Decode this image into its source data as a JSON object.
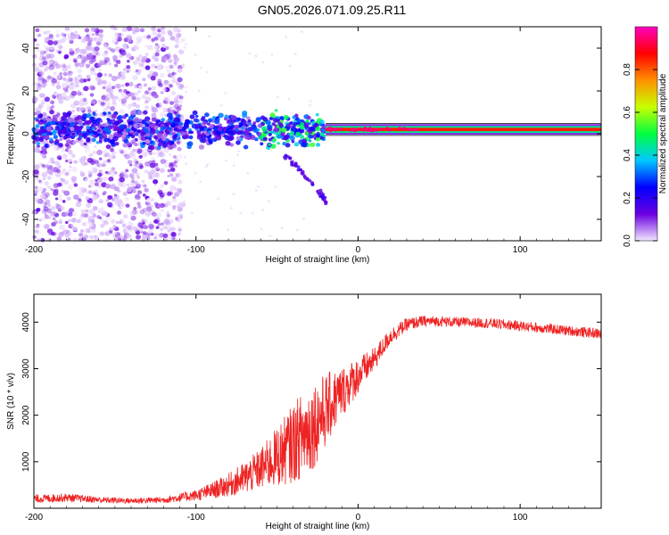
{
  "title": "GN05.2026.071.09.25.R11",
  "chart_data": [
    {
      "type": "heatmap",
      "name": "spectrogram",
      "xlabel": "Height of straight line (km)",
      "ylabel": "Frequency (Hz)",
      "xlim": [
        -200,
        150
      ],
      "ylim": [
        -50,
        50
      ],
      "xticks": [
        -200,
        -100,
        0,
        100
      ],
      "xtick_labels": [
        "-200",
        "-100",
        "0",
        "100"
      ],
      "yticks": [
        -40,
        -20,
        0,
        20,
        40
      ],
      "ytick_labels": [
        "-40",
        "-20",
        "0",
        "20",
        "40"
      ],
      "colorbar": {
        "label": "Normalized spectral amplitude",
        "range": [
          0,
          1
        ],
        "ticks": [
          0.0,
          0.2,
          0.4,
          0.6,
          0.8
        ],
        "tick_labels": [
          "0.0",
          "0.2",
          "0.4",
          "0.6",
          "0.8"
        ],
        "colors": [
          "#f2e6ff",
          "#6a00e0",
          "#0000ff",
          "#00c8ff",
          "#00ff40",
          "#c8ff00",
          "#ff9000",
          "#ff0000",
          "#ff00c0"
        ]
      },
      "features": {
        "noise_region_x": [
          -200,
          -108
        ],
        "carrier_frequency_hz": 2,
        "strong_carrier_x": [
          -20,
          150
        ],
        "descending_branch": [
          [
            -45,
            -10
          ],
          [
            -35,
            -18
          ],
          [
            -25,
            -26
          ],
          [
            -20,
            -32
          ]
        ]
      }
    },
    {
      "type": "line",
      "name": "snr",
      "xlabel": "Height of straight line (km)",
      "ylabel": "SNR (10 * v/v)",
      "xlim": [
        -200,
        150
      ],
      "ylim": [
        0,
        4600
      ],
      "xticks": [
        -200,
        -100,
        0,
        100
      ],
      "xtick_labels": [
        "-200",
        "-100",
        "0",
        "100"
      ],
      "yticks": [
        1000,
        2000,
        3000,
        4000
      ],
      "ytick_labels": [
        "1000",
        "2000",
        "3000",
        "4000"
      ],
      "color": "#ee2222",
      "trend": {
        "x": [
          -200,
          -180,
          -160,
          -140,
          -120,
          -100,
          -90,
          -80,
          -70,
          -60,
          -50,
          -40,
          -30,
          -20,
          -10,
          0,
          10,
          20,
          30,
          40,
          50,
          60,
          80,
          100,
          120,
          150
        ],
        "y": [
          200,
          230,
          180,
          160,
          180,
          280,
          380,
          500,
          650,
          850,
          1100,
          1400,
          1700,
          2100,
          2500,
          2850,
          3200,
          3700,
          3950,
          4020,
          4020,
          4000,
          3980,
          3920,
          3850,
          3750
        ],
        "spread": [
          90,
          90,
          70,
          60,
          70,
          120,
          180,
          250,
          350,
          450,
          650,
          850,
          1000,
          800,
          550,
          400,
          250,
          180,
          140,
          120,
          110,
          110,
          110,
          110,
          110,
          110
        ]
      }
    }
  ]
}
